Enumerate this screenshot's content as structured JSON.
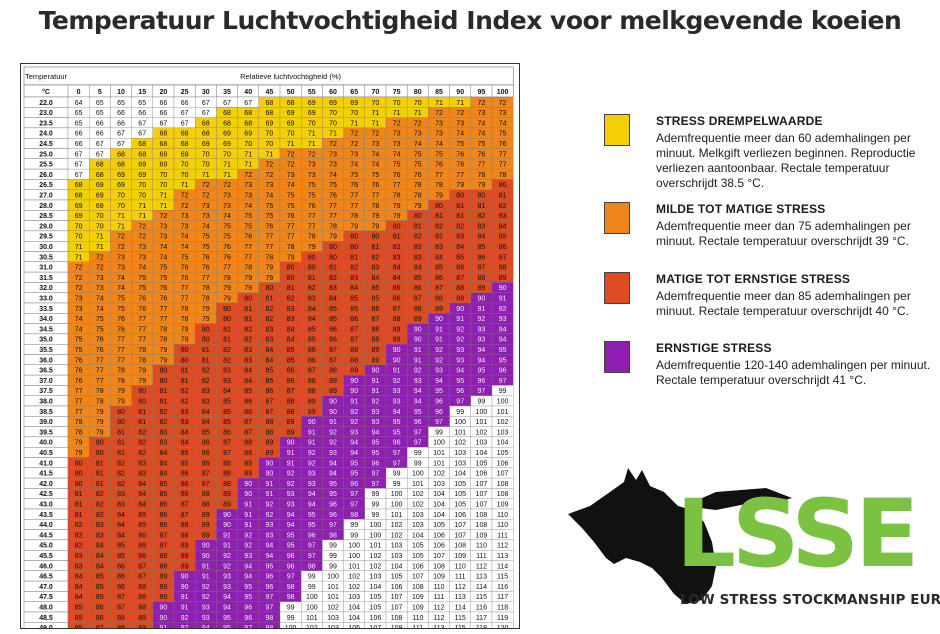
{
  "title": "Temperatuur Luchtvochtigheid Index voor melkgevende koeien",
  "colors": {
    "none": "#ffffff",
    "threshold": "#f5cf06",
    "mild": "#f0861a",
    "moderate": "#dc4b22",
    "severe": "#8e1fb0"
  },
  "legend": [
    {
      "key": "threshold",
      "color": "#f5cf06",
      "heading": "STRESS DREMPELWAARDE",
      "text": "Ademfrequentie meer dan 60 ademhalingen per minuut. Melkgift verliezen beginnen. Reproductie verliezen aantoonbaar. Rectale temperatuur overschrijdt 38.5 °C."
    },
    {
      "key": "mild",
      "color": "#f0861a",
      "heading": "MILDE TOT MATIGE STRESS",
      "text": "Ademfrequentie meer dan 75 ademhalingen per minuut. Rectale temperatuur overschrijdt 39 °C."
    },
    {
      "key": "moderate",
      "color": "#dc4b22",
      "heading": "MATIGE TOT ERNSTIGE STRESS",
      "text": "Ademfrequentie meer dan 85 ademhalingen per minuut. Rectale temperatuur overschrijdt 40 °C."
    },
    {
      "key": "severe",
      "color": "#8e1fb0",
      "heading": "ERNSTIGE STRESS",
      "text": "Ademfrequentie 120-140 ademhalingen per minuut. Rectale temperatuur overschrijdt 41 °C."
    }
  ],
  "logo": {
    "letters": "LSSE",
    "subtitle": "LOW STRESS STOCKMANSHIP EUROPE",
    "brand_color": "#7cc242"
  },
  "chart_data": {
    "type": "table",
    "row_header": "Temperatuur",
    "row_unit": "°C",
    "column_header": "Relatieve luchtvochtigheid (%)",
    "humidity": [
      "0",
      "5",
      "10",
      "15",
      "20",
      "25",
      "30",
      "35",
      "40",
      "45",
      "50",
      "55",
      "60",
      "65",
      "70",
      "75",
      "80",
      "85",
      "90",
      "95",
      "100"
    ],
    "temperatures": [
      "22.0",
      "23.0",
      "23.5",
      "24.0",
      "24.5",
      "25.0",
      "25.5",
      "26.0",
      "26.5",
      "27.0",
      "28.0",
      "28.5",
      "29.0",
      "29.5",
      "30.0",
      "30.5",
      "31.0",
      "31.5",
      "32.0",
      "33.0",
      "33.5",
      "34.0",
      "34.5",
      "35.0",
      "35.5",
      "36.0",
      "36.5",
      "37.0",
      "37.5",
      "38.0",
      "38.5",
      "39.0",
      "39.5",
      "40.0",
      "40.5",
      "41.0",
      "41.5",
      "42.0",
      "42.5",
      "43.0",
      "43.5",
      "44.0",
      "44.5",
      "45.0",
      "45.5",
      "46.0",
      "46.5",
      "47.0",
      "47.5",
      "48.0",
      "48.5",
      "49.0"
    ],
    "thresholds": {
      "threshold": 68,
      "mild": 72,
      "moderate": 80,
      "severe": 90
    },
    "values": [
      [
        64,
        65,
        65,
        65,
        66,
        66,
        67,
        67,
        67,
        68,
        68,
        69,
        69,
        69,
        70,
        70,
        70,
        71,
        71,
        72,
        72
      ],
      [
        65,
        65,
        66,
        66,
        66,
        67,
        67,
        68,
        68,
        68,
        69,
        69,
        70,
        70,
        71,
        71,
        71,
        72,
        72,
        73,
        73
      ],
      [
        65,
        66,
        66,
        67,
        67,
        67,
        68,
        68,
        68,
        69,
        69,
        70,
        70,
        71,
        71,
        72,
        72,
        73,
        73,
        74,
        74
      ],
      [
        66,
        66,
        67,
        67,
        68,
        68,
        68,
        69,
        69,
        70,
        70,
        71,
        71,
        72,
        72,
        73,
        73,
        73,
        74,
        74,
        75
      ],
      [
        66,
        67,
        67,
        68,
        68,
        68,
        69,
        69,
        70,
        70,
        71,
        71,
        72,
        72,
        73,
        73,
        74,
        74,
        75,
        75,
        76
      ],
      [
        67,
        67,
        68,
        68,
        69,
        69,
        70,
        70,
        71,
        71,
        72,
        72,
        73,
        73,
        74,
        74,
        75,
        75,
        76,
        76,
        77
      ],
      [
        67,
        68,
        68,
        69,
        69,
        70,
        70,
        71,
        71,
        72,
        72,
        73,
        73,
        74,
        74,
        75,
        75,
        76,
        76,
        77,
        77
      ],
      [
        67,
        68,
        69,
        69,
        70,
        70,
        71,
        71,
        72,
        72,
        73,
        73,
        74,
        75,
        75,
        76,
        76,
        77,
        77,
        78,
        78
      ],
      [
        68,
        69,
        69,
        70,
        70,
        71,
        72,
        72,
        73,
        73,
        74,
        75,
        75,
        76,
        76,
        77,
        78,
        78,
        79,
        79,
        80
      ],
      [
        68,
        69,
        70,
        70,
        71,
        72,
        72,
        73,
        73,
        74,
        75,
        75,
        76,
        77,
        77,
        78,
        78,
        79,
        80,
        80,
        81
      ],
      [
        69,
        69,
        70,
        71,
        71,
        72,
        73,
        73,
        74,
        75,
        75,
        76,
        77,
        77,
        78,
        79,
        79,
        80,
        81,
        81,
        82
      ],
      [
        69,
        70,
        71,
        71,
        72,
        73,
        73,
        74,
        75,
        75,
        76,
        77,
        77,
        78,
        79,
        79,
        80,
        81,
        81,
        82,
        83
      ],
      [
        70,
        70,
        71,
        72,
        73,
        73,
        74,
        75,
        75,
        76,
        77,
        77,
        78,
        79,
        79,
        80,
        81,
        82,
        82,
        83,
        84
      ],
      [
        70,
        71,
        72,
        72,
        73,
        74,
        75,
        75,
        76,
        77,
        77,
        78,
        79,
        80,
        80,
        81,
        82,
        82,
        83,
        84,
        85
      ],
      [
        71,
        71,
        72,
        73,
        74,
        74,
        75,
        76,
        77,
        77,
        78,
        79,
        80,
        80,
        81,
        82,
        83,
        83,
        84,
        85,
        86
      ],
      [
        71,
        72,
        73,
        73,
        74,
        75,
        76,
        76,
        77,
        78,
        79,
        80,
        80,
        81,
        82,
        83,
        83,
        84,
        85,
        86,
        87
      ],
      [
        72,
        72,
        73,
        74,
        75,
        76,
        76,
        77,
        78,
        79,
        80,
        80,
        81,
        82,
        83,
        84,
        84,
        85,
        86,
        87,
        88
      ],
      [
        72,
        73,
        74,
        75,
        75,
        76,
        77,
        78,
        79,
        79,
        80,
        81,
        82,
        83,
        84,
        84,
        85,
        86,
        87,
        88,
        89
      ],
      [
        72,
        73,
        74,
        75,
        76,
        77,
        78,
        79,
        79,
        80,
        81,
        82,
        83,
        84,
        85,
        86,
        86,
        87,
        88,
        89,
        90
      ],
      [
        73,
        74,
        75,
        76,
        76,
        77,
        78,
        79,
        80,
        81,
        82,
        83,
        84,
        85,
        85,
        86,
        87,
        88,
        89,
        90,
        91
      ],
      [
        73,
        74,
        75,
        76,
        77,
        78,
        79,
        80,
        81,
        82,
        83,
        84,
        85,
        85,
        86,
        87,
        88,
        89,
        90,
        91,
        92
      ],
      [
        74,
        75,
        76,
        77,
        77,
        78,
        79,
        80,
        81,
        82,
        83,
        84,
        85,
        86,
        87,
        88,
        89,
        90,
        91,
        92,
        93
      ],
      [
        74,
        75,
        76,
        77,
        78,
        79,
        80,
        81,
        82,
        83,
        84,
        85,
        86,
        87,
        88,
        89,
        90,
        91,
        92,
        93,
        94
      ],
      [
        75,
        76,
        77,
        77,
        78,
        79,
        80,
        81,
        82,
        83,
        84,
        85,
        86,
        87,
        88,
        89,
        90,
        91,
        92,
        93,
        94
      ],
      [
        75,
        76,
        77,
        78,
        79,
        80,
        81,
        82,
        83,
        84,
        85,
        86,
        87,
        88,
        89,
        90,
        91,
        92,
        93,
        94,
        95
      ],
      [
        76,
        77,
        77,
        78,
        79,
        80,
        81,
        82,
        83,
        84,
        85,
        86,
        87,
        88,
        89,
        90,
        91,
        92,
        93,
        94,
        95
      ],
      [
        76,
        77,
        78,
        79,
        80,
        81,
        82,
        83,
        84,
        85,
        86,
        87,
        88,
        89,
        90,
        91,
        92,
        93,
        94,
        95,
        96
      ],
      [
        76,
        77,
        78,
        79,
        80,
        81,
        82,
        83,
        84,
        85,
        86,
        88,
        89,
        90,
        91,
        92,
        93,
        94,
        95,
        96,
        97
      ],
      [
        77,
        78,
        79,
        80,
        81,
        82,
        83,
        84,
        85,
        86,
        87,
        88,
        89,
        90,
        91,
        93,
        94,
        95,
        96,
        97,
        99
      ],
      [
        77,
        78,
        79,
        80,
        81,
        82,
        83,
        85,
        86,
        87,
        88,
        89,
        90,
        91,
        92,
        93,
        94,
        96,
        97,
        99,
        100
      ],
      [
        77,
        79,
        80,
        81,
        82,
        83,
        84,
        85,
        86,
        87,
        88,
        89,
        90,
        92,
        93,
        94,
        95,
        96,
        99,
        100,
        101
      ],
      [
        78,
        79,
        80,
        81,
        82,
        83,
        84,
        85,
        87,
        88,
        89,
        90,
        91,
        92,
        93,
        95,
        96,
        97,
        100,
        101,
        102
      ],
      [
        78,
        79,
        81,
        82,
        83,
        84,
        85,
        86,
        87,
        88,
        89,
        91,
        92,
        93,
        94,
        95,
        97,
        99,
        101,
        102,
        103
      ],
      [
        79,
        80,
        81,
        82,
        83,
        84,
        86,
        87,
        88,
        89,
        90,
        91,
        92,
        94,
        95,
        96,
        97,
        100,
        102,
        103,
        104
      ],
      [
        79,
        80,
        81,
        82,
        84,
        85,
        86,
        87,
        88,
        89,
        91,
        92,
        93,
        94,
        95,
        97,
        99,
        101,
        103,
        104,
        105
      ],
      [
        80,
        81,
        82,
        83,
        84,
        85,
        86,
        88,
        89,
        90,
        91,
        92,
        94,
        95,
        96,
        97,
        99,
        101,
        103,
        105,
        106
      ],
      [
        80,
        81,
        82,
        83,
        84,
        86,
        87,
        88,
        89,
        90,
        92,
        93,
        94,
        95,
        97,
        99,
        100,
        102,
        104,
        106,
        107
      ],
      [
        80,
        81,
        82,
        84,
        85,
        86,
        87,
        88,
        90,
        91,
        92,
        93,
        95,
        96,
        97,
        99,
        101,
        103,
        105,
        107,
        108
      ],
      [
        81,
        82,
        83,
        84,
        85,
        86,
        88,
        89,
        90,
        91,
        93,
        94,
        95,
        97,
        99,
        100,
        102,
        104,
        105,
        107,
        108
      ],
      [
        81,
        82,
        83,
        84,
        86,
        87,
        88,
        89,
        91,
        92,
        93,
        94,
        96,
        97,
        99,
        100,
        102,
        104,
        105,
        107,
        109
      ],
      [
        81,
        82,
        84,
        85,
        86,
        87,
        89,
        90,
        91,
        92,
        94,
        95,
        96,
        98,
        99,
        101,
        103,
        104,
        106,
        108,
        110
      ],
      [
        82,
        83,
        84,
        85,
        86,
        88,
        89,
        90,
        91,
        93,
        94,
        95,
        97,
        99,
        100,
        102,
        103,
        105,
        107,
        108,
        110
      ],
      [
        82,
        83,
        84,
        86,
        87,
        88,
        89,
        91,
        92,
        93,
        95,
        96,
        98,
        99,
        100,
        102,
        104,
        106,
        107,
        109,
        111
      ],
      [
        82,
        84,
        85,
        86,
        87,
        89,
        90,
        91,
        92,
        94,
        95,
        97,
        99,
        100,
        101,
        103,
        105,
        106,
        108,
        110,
        112
      ],
      [
        83,
        84,
        85,
        86,
        88,
        89,
        90,
        92,
        93,
        94,
        96,
        97,
        99,
        100,
        102,
        103,
        105,
        107,
        109,
        111,
        113
      ],
      [
        83,
        84,
        86,
        87,
        88,
        89,
        91,
        92,
        94,
        95,
        96,
        98,
        99,
        101,
        102,
        104,
        106,
        108,
        110,
        112,
        114
      ],
      [
        84,
        85,
        86,
        87,
        89,
        90,
        91,
        93,
        94,
        96,
        97,
        99,
        100,
        102,
        103,
        105,
        107,
        109,
        111,
        113,
        115
      ],
      [
        84,
        85,
        86,
        88,
        89,
        90,
        92,
        93,
        95,
        96,
        98,
        99,
        101,
        102,
        104,
        106,
        108,
        110,
        112,
        114,
        116
      ],
      [
        84,
        85,
        87,
        88,
        89,
        91,
        92,
        94,
        95,
        97,
        98,
        100,
        101,
        103,
        105,
        107,
        109,
        111,
        113,
        115,
        117
      ],
      [
        85,
        86,
        87,
        88,
        90,
        91,
        93,
        94,
        96,
        97,
        99,
        100,
        102,
        104,
        105,
        107,
        109,
        112,
        114,
        116,
        118
      ],
      [
        85,
        86,
        88,
        89,
        90,
        92,
        93,
        95,
        96,
        98,
        99,
        101,
        103,
        104,
        106,
        108,
        110,
        112,
        115,
        117,
        119
      ],
      [
        85,
        87,
        88,
        89,
        91,
        92,
        94,
        95,
        97,
        98,
        100,
        102,
        103,
        105,
        107,
        109,
        111,
        113,
        115,
        118,
        120
      ]
    ]
  }
}
